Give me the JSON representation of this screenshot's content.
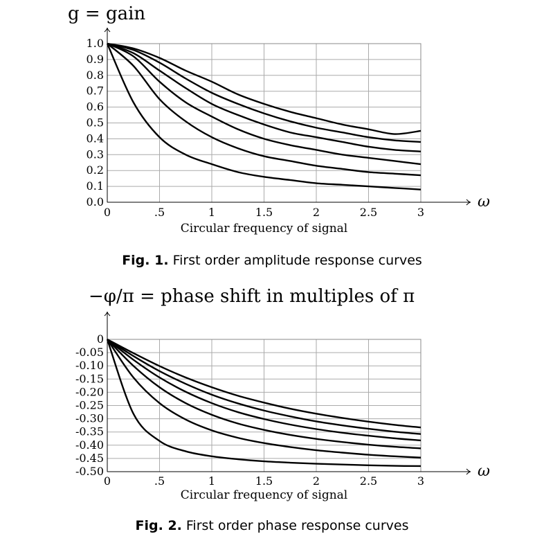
{
  "chart_data": [
    {
      "type": "line",
      "title": "g = gain",
      "xlabel": "Circular frequency of signal",
      "xaxis_symbol": "ω",
      "caption_label": "Fig. 1.",
      "caption_text": "First order amplitude response curves",
      "xlim": [
        0,
        3
      ],
      "ylim": [
        0,
        1
      ],
      "xticks": [
        0,
        0.5,
        1,
        1.5,
        2,
        2.5,
        3
      ],
      "xtick_labels": [
        "0",
        ".5",
        "1",
        "1.5",
        "2",
        "2.5",
        "3"
      ],
      "yticks": [
        1,
        0.9,
        0.8,
        0.7,
        0.6,
        0.5,
        0.4,
        0.3,
        0.2,
        0.1,
        0
      ],
      "ytick_labels": [
        "1.0",
        "0.9",
        "0.8",
        "0.7",
        "0.6",
        "0.5",
        "0.4",
        "0.3",
        "0.2",
        "0.1",
        "0.0"
      ],
      "grid": true,
      "x": [
        0,
        0.25,
        0.5,
        0.75,
        1,
        1.25,
        1.5,
        1.75,
        2,
        2.25,
        2.5,
        2.75,
        3
      ],
      "series": [
        {
          "values": [
            1.0,
            0.97,
            0.91,
            0.83,
            0.76,
            0.68,
            0.62,
            0.57,
            0.53,
            0.49,
            0.46,
            0.43,
            0.45
          ]
        },
        {
          "values": [
            1.0,
            0.96,
            0.88,
            0.78,
            0.69,
            0.62,
            0.56,
            0.51,
            0.47,
            0.44,
            0.41,
            0.39,
            0.38
          ]
        },
        {
          "values": [
            1.0,
            0.94,
            0.83,
            0.72,
            0.62,
            0.55,
            0.49,
            0.44,
            0.41,
            0.38,
            0.35,
            0.33,
            0.32
          ]
        },
        {
          "values": [
            1.0,
            0.92,
            0.76,
            0.63,
            0.54,
            0.46,
            0.4,
            0.36,
            0.33,
            0.3,
            0.28,
            0.26,
            0.24
          ]
        },
        {
          "values": [
            1.0,
            0.86,
            0.65,
            0.51,
            0.41,
            0.34,
            0.29,
            0.26,
            0.23,
            0.21,
            0.19,
            0.18,
            0.17
          ]
        },
        {
          "values": [
            1.0,
            0.63,
            0.41,
            0.3,
            0.24,
            0.19,
            0.16,
            0.14,
            0.12,
            0.11,
            0.1,
            0.09,
            0.08
          ]
        }
      ]
    },
    {
      "type": "line",
      "title": "−φ/π = phase shift in multiples of π",
      "xlabel": "Circular frequency of signal",
      "xaxis_symbol": "ω",
      "caption_label": "Fig. 2.",
      "caption_text": "First order phase response curves",
      "xlim": [
        0,
        3
      ],
      "ylim": [
        -0.5,
        0
      ],
      "xticks": [
        0,
        0.5,
        1,
        1.5,
        2,
        2.5,
        3
      ],
      "xtick_labels": [
        "0",
        ".5",
        "1",
        "1.5",
        "2",
        "2.5",
        "3"
      ],
      "yticks": [
        0,
        -0.05,
        -0.1,
        -0.15,
        -0.2,
        -0.25,
        -0.3,
        -0.35,
        -0.4,
        -0.45,
        -0.5
      ],
      "ytick_labels": [
        "0",
        "-0.05",
        "-0.10",
        "-0.15",
        "-0.20",
        "-0.25",
        "-0.30",
        "-0.35",
        "-0.40",
        "-0.45",
        "-0.50"
      ],
      "grid": true,
      "x": [
        0,
        0.25,
        0.5,
        0.75,
        1,
        1.25,
        1.5,
        1.75,
        2,
        2.25,
        2.5,
        2.75,
        3
      ],
      "series": [
        {
          "values": [
            0,
            -0.052,
            -0.101,
            -0.144,
            -0.181,
            -0.213,
            -0.239,
            -0.262,
            -0.281,
            -0.297,
            -0.311,
            -0.323,
            -0.333
          ]
        },
        {
          "values": [
            0,
            -0.063,
            -0.12,
            -0.168,
            -0.209,
            -0.242,
            -0.269,
            -0.291,
            -0.31,
            -0.325,
            -0.338,
            -0.349,
            -0.358
          ]
        },
        {
          "values": [
            0,
            -0.077,
            -0.144,
            -0.198,
            -0.241,
            -0.275,
            -0.301,
            -0.322,
            -0.339,
            -0.353,
            -0.364,
            -0.374,
            -0.382
          ]
        },
        {
          "values": [
            0,
            -0.1,
            -0.181,
            -0.241,
            -0.285,
            -0.318,
            -0.342,
            -0.361,
            -0.376,
            -0.388,
            -0.398,
            -0.406,
            -0.412
          ]
        },
        {
          "values": [
            0,
            -0.144,
            -0.241,
            -0.303,
            -0.344,
            -0.372,
            -0.392,
            -0.407,
            -0.419,
            -0.428,
            -0.436,
            -0.442,
            -0.447
          ]
        },
        {
          "values": [
            0,
            -0.281,
            -0.384,
            -0.423,
            -0.442,
            -0.453,
            -0.461,
            -0.466,
            -0.47,
            -0.473,
            -0.476,
            -0.478,
            -0.479
          ]
        }
      ]
    }
  ]
}
